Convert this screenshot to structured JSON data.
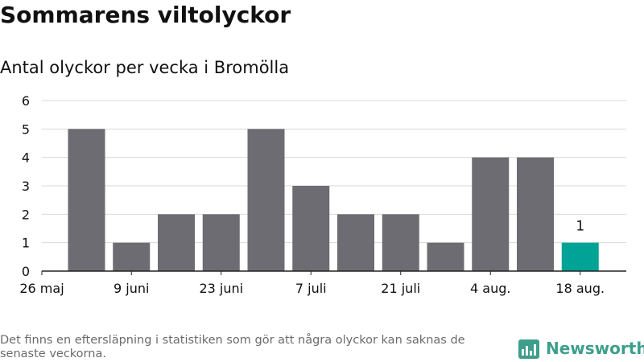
{
  "header": {
    "title": "Sommarens viltolyckor",
    "subtitle": "Antal olyckor per vecka i Bromölla"
  },
  "footer": {
    "note": "Det finns en eftersläpning i statistiken som gör att några olyckor kan saknas de senaste veckorna.",
    "brand": "Newsworthy",
    "brand_icon": "newsworthy-logo-icon"
  },
  "colors": {
    "bar": "#6d6c72",
    "highlight": "#00a396",
    "grid": "#d9d9d9",
    "axis": "#222222",
    "brand": "#3e9e8c"
  },
  "chart_data": {
    "type": "bar",
    "title": "Sommarens viltolyckor",
    "subtitle": "Antal olyckor per vecka i Bromölla",
    "xlabel": "",
    "ylabel": "",
    "ylim": [
      0,
      6
    ],
    "yticks": [
      0,
      1,
      2,
      3,
      4,
      5,
      6
    ],
    "grid": true,
    "legend": "none",
    "x_tick_labels": [
      "26 maj",
      "9 juni",
      "23 juni",
      "7 juli",
      "21 juli",
      "4 aug.",
      "18 aug."
    ],
    "x_tick_categories": [
      0,
      2,
      4,
      6,
      8,
      10,
      12
    ],
    "values": [
      5,
      1,
      2,
      2,
      5,
      3,
      2,
      2,
      1,
      4,
      4,
      1
    ],
    "highlight_index": 11,
    "data_labels": [
      {
        "index": 11,
        "text": "1"
      }
    ]
  }
}
